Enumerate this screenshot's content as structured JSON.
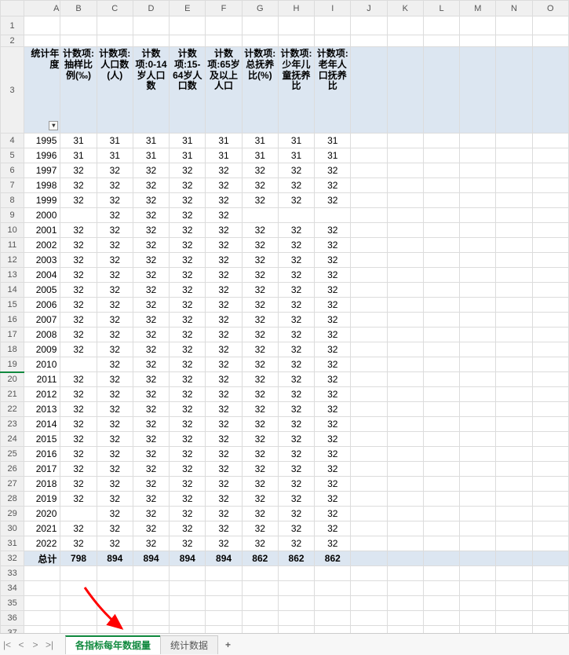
{
  "columns_letters": [
    "A",
    "B",
    "C",
    "D",
    "E",
    "F",
    "G",
    "H",
    "I",
    "J",
    "K",
    "L",
    "M",
    "N",
    "O"
  ],
  "header_row_index": 3,
  "headers": {
    "A": "统计年度",
    "B": "计数项:抽样比例(‰)",
    "C": "计数项:人口数(人)",
    "D": "计数项:0-14岁人口数",
    "E": "计数项:15-64岁人口数",
    "F": "计数项:65岁及以上人口",
    "G": "计数项:总抚养比(%)",
    "H": "计数项:少年儿童抚养比",
    "I": "计数项:老年人口抚养比"
  },
  "header_has_dropdown": true,
  "colors": {
    "header_fill": "#dce6f1",
    "total_fill": "#dce6f1",
    "grid_line": "#dcdcdc",
    "tab_active_text": "#10893e",
    "tab_active_border": "#10893e",
    "arrow": "#ff0000"
  },
  "rows": [
    {
      "r": 4,
      "A": "1995",
      "B": "31",
      "C": "31",
      "D": "31",
      "E": "31",
      "F": "31",
      "G": "31",
      "H": "31",
      "I": "31"
    },
    {
      "r": 5,
      "A": "1996",
      "B": "31",
      "C": "31",
      "D": "31",
      "E": "31",
      "F": "31",
      "G": "31",
      "H": "31",
      "I": "31"
    },
    {
      "r": 6,
      "A": "1997",
      "B": "32",
      "C": "32",
      "D": "32",
      "E": "32",
      "F": "32",
      "G": "32",
      "H": "32",
      "I": "32"
    },
    {
      "r": 7,
      "A": "1998",
      "B": "32",
      "C": "32",
      "D": "32",
      "E": "32",
      "F": "32",
      "G": "32",
      "H": "32",
      "I": "32"
    },
    {
      "r": 8,
      "A": "1999",
      "B": "32",
      "C": "32",
      "D": "32",
      "E": "32",
      "F": "32",
      "G": "32",
      "H": "32",
      "I": "32"
    },
    {
      "r": 9,
      "A": "2000",
      "B": "",
      "C": "32",
      "D": "32",
      "E": "32",
      "F": "32",
      "G": "",
      "H": "",
      "I": ""
    },
    {
      "r": 10,
      "A": "2001",
      "B": "32",
      "C": "32",
      "D": "32",
      "E": "32",
      "F": "32",
      "G": "32",
      "H": "32",
      "I": "32"
    },
    {
      "r": 11,
      "A": "2002",
      "B": "32",
      "C": "32",
      "D": "32",
      "E": "32",
      "F": "32",
      "G": "32",
      "H": "32",
      "I": "32"
    },
    {
      "r": 12,
      "A": "2003",
      "B": "32",
      "C": "32",
      "D": "32",
      "E": "32",
      "F": "32",
      "G": "32",
      "H": "32",
      "I": "32"
    },
    {
      "r": 13,
      "A": "2004",
      "B": "32",
      "C": "32",
      "D": "32",
      "E": "32",
      "F": "32",
      "G": "32",
      "H": "32",
      "I": "32"
    },
    {
      "r": 14,
      "A": "2005",
      "B": "32",
      "C": "32",
      "D": "32",
      "E": "32",
      "F": "32",
      "G": "32",
      "H": "32",
      "I": "32"
    },
    {
      "r": 15,
      "A": "2006",
      "B": "32",
      "C": "32",
      "D": "32",
      "E": "32",
      "F": "32",
      "G": "32",
      "H": "32",
      "I": "32"
    },
    {
      "r": 16,
      "A": "2007",
      "B": "32",
      "C": "32",
      "D": "32",
      "E": "32",
      "F": "32",
      "G": "32",
      "H": "32",
      "I": "32"
    },
    {
      "r": 17,
      "A": "2008",
      "B": "32",
      "C": "32",
      "D": "32",
      "E": "32",
      "F": "32",
      "G": "32",
      "H": "32",
      "I": "32"
    },
    {
      "r": 18,
      "A": "2009",
      "B": "32",
      "C": "32",
      "D": "32",
      "E": "32",
      "F": "32",
      "G": "32",
      "H": "32",
      "I": "32"
    },
    {
      "r": 19,
      "A": "2010",
      "B": "",
      "C": "32",
      "D": "32",
      "E": "32",
      "F": "32",
      "G": "32",
      "H": "32",
      "I": "32"
    },
    {
      "r": 20,
      "A": "2011",
      "B": "32",
      "C": "32",
      "D": "32",
      "E": "32",
      "F": "32",
      "G": "32",
      "H": "32",
      "I": "32"
    },
    {
      "r": 21,
      "A": "2012",
      "B": "32",
      "C": "32",
      "D": "32",
      "E": "32",
      "F": "32",
      "G": "32",
      "H": "32",
      "I": "32"
    },
    {
      "r": 22,
      "A": "2013",
      "B": "32",
      "C": "32",
      "D": "32",
      "E": "32",
      "F": "32",
      "G": "32",
      "H": "32",
      "I": "32"
    },
    {
      "r": 23,
      "A": "2014",
      "B": "32",
      "C": "32",
      "D": "32",
      "E": "32",
      "F": "32",
      "G": "32",
      "H": "32",
      "I": "32"
    },
    {
      "r": 24,
      "A": "2015",
      "B": "32",
      "C": "32",
      "D": "32",
      "E": "32",
      "F": "32",
      "G": "32",
      "H": "32",
      "I": "32"
    },
    {
      "r": 25,
      "A": "2016",
      "B": "32",
      "C": "32",
      "D": "32",
      "E": "32",
      "F": "32",
      "G": "32",
      "H": "32",
      "I": "32"
    },
    {
      "r": 26,
      "A": "2017",
      "B": "32",
      "C": "32",
      "D": "32",
      "E": "32",
      "F": "32",
      "G": "32",
      "H": "32",
      "I": "32"
    },
    {
      "r": 27,
      "A": "2018",
      "B": "32",
      "C": "32",
      "D": "32",
      "E": "32",
      "F": "32",
      "G": "32",
      "H": "32",
      "I": "32"
    },
    {
      "r": 28,
      "A": "2019",
      "B": "32",
      "C": "32",
      "D": "32",
      "E": "32",
      "F": "32",
      "G": "32",
      "H": "32",
      "I": "32"
    },
    {
      "r": 29,
      "A": "2020",
      "B": "",
      "C": "32",
      "D": "32",
      "E": "32",
      "F": "32",
      "G": "32",
      "H": "32",
      "I": "32"
    },
    {
      "r": 30,
      "A": "2021",
      "B": "32",
      "C": "32",
      "D": "32",
      "E": "32",
      "F": "32",
      "G": "32",
      "H": "32",
      "I": "32"
    },
    {
      "r": 31,
      "A": "2022",
      "B": "32",
      "C": "32",
      "D": "32",
      "E": "32",
      "F": "32",
      "G": "32",
      "H": "32",
      "I": "32"
    },
    {
      "r": 32,
      "A": "总计",
      "B": "798",
      "C": "894",
      "D": "894",
      "E": "894",
      "F": "894",
      "G": "862",
      "H": "862",
      "I": "862"
    }
  ],
  "empty_rows_after": [
    33,
    34,
    35,
    36,
    37,
    38
  ],
  "sheet_tabs": {
    "active": "各指标每年数据量",
    "others": [
      "统计数据"
    ]
  },
  "nav_glyphs": {
    "first": "|<",
    "prev": "<",
    "next": ">",
    "last": ">|"
  }
}
